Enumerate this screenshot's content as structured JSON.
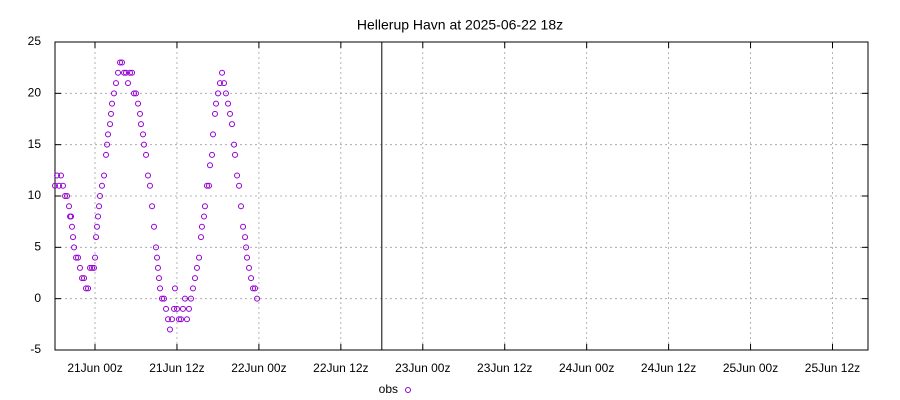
{
  "chart_data": {
    "type": "scatter",
    "title": "Hellerup Havn at 2025-06-22 18z",
    "xlim": [
      -5.86,
      113.2
    ],
    "ylim": [
      -5,
      25
    ],
    "yticks": [
      -5,
      0,
      5,
      10,
      15,
      20,
      25
    ],
    "xticks": [
      {
        "value": 0,
        "label": "21Jun 00z"
      },
      {
        "value": 12,
        "label": "21Jun 12z"
      },
      {
        "value": 24,
        "label": "22Jun 00z"
      },
      {
        "value": 36,
        "label": "22Jun 12z"
      },
      {
        "value": 48,
        "label": "23Jun 00z"
      },
      {
        "value": 60,
        "label": "23Jun 12z"
      },
      {
        "value": 72,
        "label": "24Jun 00z"
      },
      {
        "value": 84,
        "label": "24Jun 12z"
      },
      {
        "value": 96,
        "label": "25Jun 00z"
      },
      {
        "value": 108,
        "label": "25Jun 12z"
      }
    ],
    "grid": true,
    "vline": 42,
    "legend": "bottom",
    "series": [
      {
        "name": "obs",
        "color": "#9400d3",
        "x": [
          -5.86,
          -5.56,
          -5.27,
          -4.98,
          -4.69,
          -4.39,
          -4.1,
          -3.81,
          -3.66,
          -3.51,
          -3.37,
          -3.22,
          -3.07,
          -2.78,
          -2.49,
          -2.2,
          -1.9,
          -1.61,
          -1.32,
          -1.02,
          -0.73,
          -0.44,
          -0.15,
          0,
          0.15,
          0.29,
          0.44,
          0.59,
          0.73,
          1.02,
          1.32,
          1.61,
          1.76,
          1.9,
          2.2,
          2.34,
          2.49,
          2.78,
          3.07,
          3.37,
          3.66,
          3.95,
          4.25,
          4.54,
          4.83,
          5.12,
          5.42,
          5.71,
          6.0,
          6.3,
          6.59,
          6.73,
          7.03,
          7.17,
          7.47,
          7.76,
          8.05,
          8.35,
          8.64,
          8.93,
          9.08,
          9.22,
          9.37,
          9.52,
          9.81,
          10.1,
          10.4,
          10.69,
          10.98,
          11.27,
          11.57,
          11.71,
          12.01,
          12.3,
          12.59,
          12.88,
          13.18,
          13.47,
          13.76,
          14.05,
          14.35,
          14.64,
          14.93,
          15.23,
          15.52,
          15.66,
          15.96,
          16.1,
          16.4,
          16.69,
          16.84,
          17.13,
          17.28,
          17.57,
          17.72,
          18.01,
          18.3,
          18.6,
          18.89,
          19.18,
          19.48,
          19.77,
          20.06,
          20.36,
          20.5,
          20.8,
          21.09,
          21.38,
          21.68,
          21.97,
          22.12,
          22.26,
          22.55,
          22.85,
          23.14,
          23.43,
          23.73
        ],
        "values": [
          11,
          12,
          11,
          12,
          11,
          10,
          10,
          9,
          8,
          8,
          7,
          6,
          5,
          4,
          4,
          3,
          2,
          2,
          1,
          1,
          3,
          3,
          3,
          4,
          6,
          7,
          8,
          9,
          10,
          11,
          12,
          14,
          15,
          16,
          17,
          18,
          19,
          20,
          21,
          22,
          23,
          23,
          22,
          22,
          21,
          22,
          22,
          20,
          20,
          19,
          18,
          17,
          16,
          15,
          14,
          12,
          11,
          9,
          7,
          5,
          4,
          3,
          2,
          1,
          0,
          0,
          -1,
          -2,
          -3,
          -2,
          -1,
          1,
          -1,
          -2,
          -2,
          -1,
          0,
          -2,
          -1,
          0,
          1,
          2,
          3,
          4,
          6,
          7,
          8,
          9,
          11,
          11,
          13,
          14,
          16,
          18,
          19,
          20,
          21,
          22,
          21,
          20,
          19,
          18,
          17,
          15,
          14,
          12,
          11,
          9,
          7,
          6,
          5,
          4,
          3,
          2,
          1,
          1,
          0
        ]
      }
    ]
  }
}
